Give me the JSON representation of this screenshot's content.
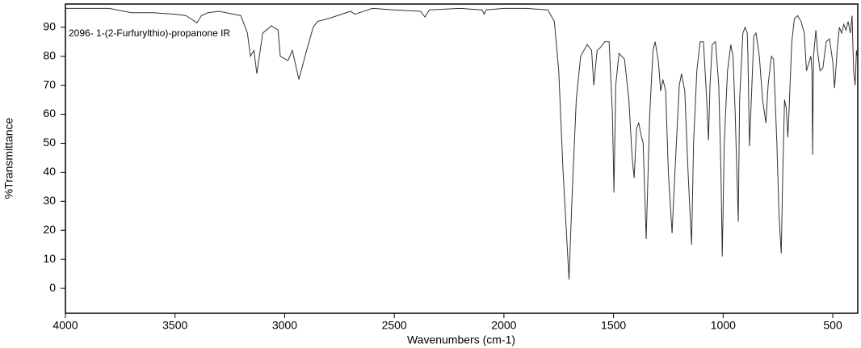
{
  "chart_data": {
    "type": "line",
    "annotation": "2096- 1-(2-Furfurylthio)-propanone IR",
    "x_label": "Wavenumbers (cm-1)",
    "y_label": "%Transmittance",
    "xlim": [
      4000,
      386
    ],
    "ylim": [
      -8.6,
      98
    ],
    "xticks": [
      4000,
      3500,
      3000,
      2500,
      2000,
      1500,
      1000,
      500
    ],
    "yticks": [
      0,
      10,
      20,
      30,
      40,
      50,
      60,
      70,
      80,
      90
    ],
    "series": [
      {
        "color": "#333333",
        "x": [
          4000,
          3800,
          3700,
          3600,
          3500,
          3450,
          3400,
          3380,
          3350,
          3300,
          3200,
          3170,
          3156,
          3140,
          3127,
          3100,
          3060,
          3030,
          3020,
          2985,
          2965,
          2935,
          2900,
          2870,
          2850,
          2800,
          2700,
          2680,
          2600,
          2500,
          2380,
          2360,
          2340,
          2200,
          2100,
          2090,
          2080,
          2000,
          1900,
          1800,
          1770,
          1750,
          1730,
          1703,
          1690,
          1670,
          1650,
          1620,
          1600,
          1590,
          1575,
          1560,
          1540,
          1520,
          1505,
          1498,
          1490,
          1475,
          1450,
          1430,
          1415,
          1406,
          1395,
          1385,
          1375,
          1365,
          1351,
          1335,
          1320,
          1310,
          1295,
          1285,
          1275,
          1262,
          1250,
          1233,
          1220,
          1200,
          1190,
          1175,
          1160,
          1144,
          1135,
          1120,
          1105,
          1090,
          1075,
          1067,
          1060,
          1050,
          1035,
          1020,
          1010,
          1004,
          995,
          980,
          965,
          955,
          945,
          931,
          925,
          910,
          900,
          890,
          887,
          880,
          860,
          850,
          835,
          820,
          805,
          795,
          780,
          770,
          755,
          745,
          735,
          728,
          720,
          712,
          705,
          700,
          687,
          675,
          660,
          645,
          630,
          620,
          600,
          595,
          592,
          588,
          577,
          570,
          558,
          545,
          530,
          515,
          500,
          492,
          480,
          470,
          460,
          450,
          440,
          430,
          420,
          412,
          405,
          398,
          392,
          388
        ],
        "values": [
          96.5,
          96.5,
          95,
          95,
          94.5,
          94,
          91.5,
          94,
          95,
          95.5,
          94,
          88,
          80,
          82,
          74,
          88,
          90.5,
          89,
          80,
          78.5,
          82,
          72,
          82,
          90,
          92,
          93,
          95.5,
          94.5,
          96.5,
          96,
          95.5,
          93.5,
          96,
          96.5,
          96,
          94.5,
          96,
          96.5,
          96.5,
          96,
          92,
          75,
          40,
          3,
          30,
          65,
          80,
          84,
          82,
          70,
          82,
          83,
          85,
          85,
          60,
          33,
          70,
          81,
          79,
          65,
          45,
          38,
          55,
          57,
          53,
          50,
          17,
          60,
          82,
          85,
          78,
          68,
          72,
          68,
          40,
          19,
          40,
          70,
          74,
          68,
          40,
          15,
          50,
          75,
          85,
          85,
          65,
          51,
          70,
          84,
          85,
          70,
          40,
          11,
          50,
          75,
          84,
          80,
          60,
          23,
          65,
          88,
          90,
          88,
          80,
          49,
          87,
          88,
          80,
          65,
          57,
          70,
          80,
          79,
          50,
          25,
          12,
          40,
          65,
          62,
          52,
          60,
          85,
          93,
          94,
          92,
          88,
          75,
          80,
          75,
          46,
          80,
          89,
          82,
          75,
          76,
          85,
          86,
          78,
          69,
          82,
          90,
          88,
          91,
          89,
          92,
          88,
          94,
          75,
          70,
          82,
          80
        ]
      }
    ]
  }
}
